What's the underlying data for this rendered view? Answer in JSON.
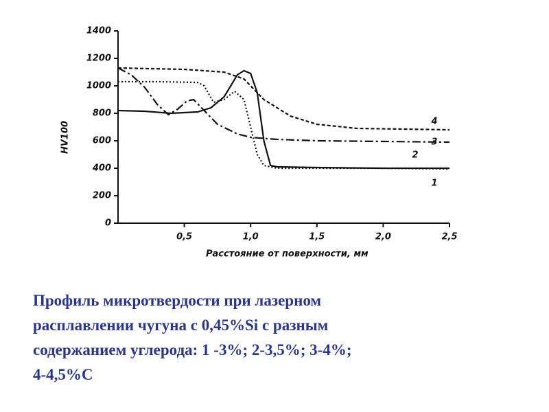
{
  "chart_data": {
    "type": "line",
    "xlabel": "Расстояние от поверхности, мм",
    "ylabel": "HV100",
    "xlim": [
      0,
      2.5
    ],
    "ylim": [
      0,
      1400
    ],
    "xticks": [
      {
        "value": 0.5,
        "label": "0,5"
      },
      {
        "value": 1.0,
        "label": "1,0"
      },
      {
        "value": 1.5,
        "label": "1,5"
      },
      {
        "value": 2.0,
        "label": "2,0"
      },
      {
        "value": 2.5,
        "label": "2,5"
      }
    ],
    "yticks": [
      0,
      200,
      400,
      600,
      800,
      1000,
      1200,
      1400
    ],
    "series": [
      {
        "name": "1",
        "color": "#111111",
        "style": "solid",
        "x": [
          0,
          0.2,
          0.4,
          0.6,
          0.7,
          0.8,
          0.9,
          0.95,
          1.0,
          1.05,
          1.1,
          1.15,
          1.2,
          1.5,
          2.0,
          2.5
        ],
        "values": [
          820,
          815,
          800,
          810,
          840,
          920,
          1080,
          1110,
          1090,
          950,
          600,
          420,
          410,
          405,
          400,
          400
        ]
      },
      {
        "name": "2",
        "color": "#111111",
        "style": "dotted",
        "x": [
          0,
          0.3,
          0.6,
          0.65,
          0.72,
          0.8,
          0.88,
          0.95,
          1.0,
          1.05,
          1.1,
          1.2,
          1.5,
          2.0,
          2.5
        ],
        "values": [
          1030,
          1030,
          1025,
          1000,
          880,
          900,
          960,
          900,
          700,
          500,
          420,
          400,
          400,
          400,
          395
        ]
      },
      {
        "name": "3",
        "color": "#111111",
        "style": "dashdot",
        "x": [
          0,
          0.1,
          0.2,
          0.3,
          0.38,
          0.45,
          0.52,
          0.57,
          0.65,
          0.75,
          0.9,
          1.0,
          1.2,
          1.5,
          2.0,
          2.5
        ],
        "values": [
          1130,
          1080,
          990,
          860,
          790,
          830,
          890,
          900,
          820,
          720,
          650,
          625,
          610,
          600,
          595,
          590
        ]
      },
      {
        "name": "4",
        "color": "#111111",
        "style": "dashed",
        "x": [
          0,
          0.5,
          0.8,
          0.95,
          1.1,
          1.3,
          1.5,
          1.8,
          2.5
        ],
        "values": [
          1130,
          1120,
          1100,
          1050,
          900,
          780,
          720,
          690,
          680
        ]
      }
    ]
  },
  "caption": [
    "Профиль микротвердости при лазерном",
    "расплавлении чугуна с 0,45%Si с разным",
    "содержанием углерода: 1 -3%; 2-3,5%; 3-4%;",
    "4-4,5%С"
  ]
}
